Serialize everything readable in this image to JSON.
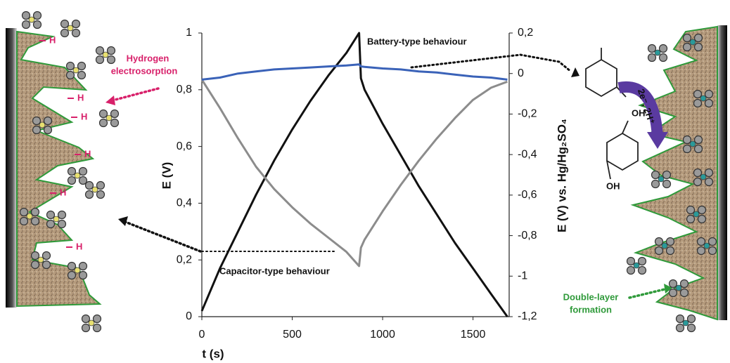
{
  "chart_data": {
    "type": "line",
    "x_label": "t (s)",
    "y_label": "E (V)",
    "y2_label": "E (V) vs. Hg/Hg₂SO₄",
    "x": [
      0,
      100,
      200,
      300,
      400,
      500,
      600,
      700,
      800,
      870,
      880,
      900,
      1000,
      1100,
      1200,
      1300,
      1400,
      1500,
      1600,
      1690
    ],
    "series": [
      {
        "color": "#111111",
        "axis": "y",
        "values": [
          0.02,
          0.17,
          0.3,
          0.43,
          0.55,
          0.66,
          0.76,
          0.85,
          0.93,
          1.0,
          0.84,
          0.8,
          0.68,
          0.57,
          0.46,
          0.36,
          0.26,
          0.17,
          0.08,
          0.0
        ]
      },
      {
        "color": "#8c8c8c",
        "axis": "y2",
        "values": [
          -0.03,
          -0.17,
          -0.32,
          -0.46,
          -0.57,
          -0.66,
          -0.74,
          -0.81,
          -0.88,
          -0.95,
          -0.86,
          -0.82,
          -0.68,
          -0.55,
          -0.43,
          -0.32,
          -0.22,
          -0.13,
          -0.07,
          -0.04
        ]
      },
      {
        "color": "#3a62b8",
        "axis": "y2",
        "values": [
          -0.03,
          -0.02,
          0,
          0.01,
          0.02,
          0.025,
          0.03,
          0.035,
          0.04,
          0.045,
          0.035,
          0.033,
          0.025,
          0.02,
          0.01,
          0.005,
          -0.005,
          -0.015,
          -0.02,
          -0.03
        ]
      }
    ],
    "xlim": [
      0,
      1700
    ],
    "xticks": [
      0,
      500,
      1000,
      1500
    ],
    "ylim": [
      0,
      1
    ],
    "yticks": [
      0,
      {
        "value": 0.2,
        "label": "0,2"
      },
      {
        "value": 0.4,
        "label": "0,4"
      },
      {
        "value": 0.6,
        "label": "0,6"
      },
      {
        "value": 0.8,
        "label": "0,8"
      },
      1
    ],
    "y2lim": [
      -1.2,
      0.2
    ],
    "y2ticks": [
      {
        "value": 0.2,
        "label": "0,2"
      },
      0,
      {
        "value": -0.2,
        "label": "-0,2"
      },
      {
        "value": -0.4,
        "label": "-0,4"
      },
      {
        "value": -0.6,
        "label": "-0,6"
      },
      {
        "value": -0.8,
        "label": "-0,8"
      },
      -1,
      {
        "value": -1.2,
        "label": "-1,2"
      }
    ],
    "grid": false,
    "annotations": {
      "battery": "Battery-type behaviour",
      "capacitor": "Capacitor-type behaviour",
      "hydrogen": [
        "Hydrogen",
        "electrosorption"
      ],
      "double_layer": [
        "Double-layer",
        "formation"
      ],
      "reaction": "2e⁻, 2H⁺",
      "hydrogen_labels": [
        "H",
        "H",
        "H",
        "H",
        "H",
        "H"
      ],
      "hydroxyl_labels": [
        "OH",
        "OH"
      ]
    }
  }
}
